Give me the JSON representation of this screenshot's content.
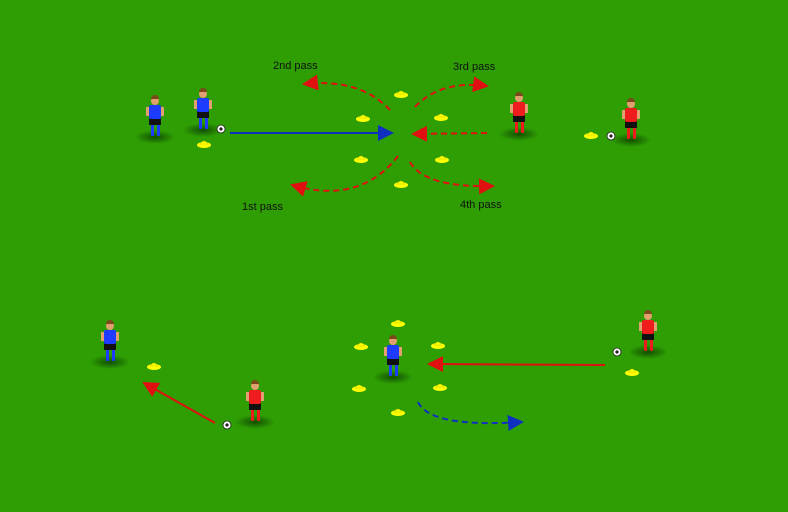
{
  "colors": {
    "pitch": "#2e9e04",
    "team_blue": "#1e3cff",
    "team_red": "#ee1c1c",
    "cone": "#ffff00",
    "pass_arrow": "#e01010",
    "run_arrow_blue": "#1030c0"
  },
  "labels": {
    "pass_1": "1st pass",
    "pass_2": "2nd pass",
    "pass_3": "3rd pass",
    "pass_4": "4th pass"
  }
}
